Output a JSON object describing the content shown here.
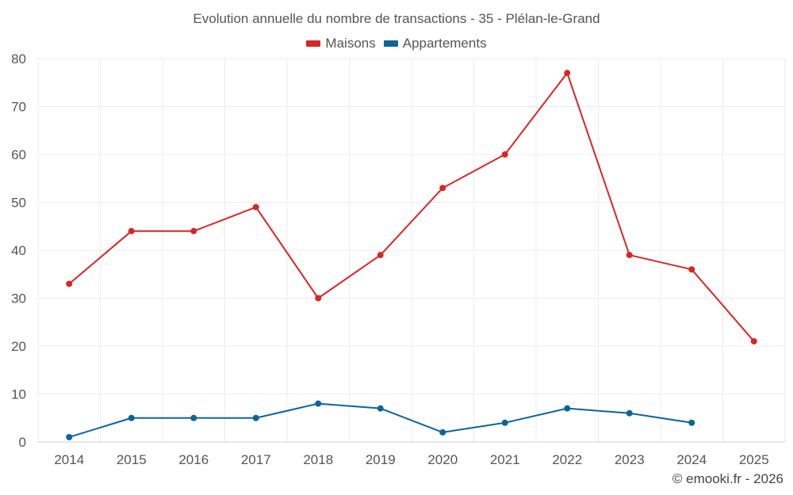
{
  "chart_data": {
    "type": "line",
    "title": "Evolution annuelle du nombre de transactions - 35 - Plélan-le-Grand",
    "xlabel": "",
    "ylabel": "",
    "categories": [
      "2014",
      "2015",
      "2016",
      "2017",
      "2018",
      "2019",
      "2020",
      "2021",
      "2022",
      "2023",
      "2024",
      "2025"
    ],
    "ylim": [
      0,
      80
    ],
    "yticks": [
      0,
      10,
      20,
      30,
      40,
      50,
      60,
      70,
      80
    ],
    "grid": true,
    "legend_position": "top-center",
    "series": [
      {
        "name": "Maisons",
        "color": "#d62728",
        "values": [
          33,
          44,
          44,
          49,
          30,
          39,
          53,
          60,
          77,
          39,
          36,
          21
        ]
      },
      {
        "name": "Appartements",
        "color": "#0f6398",
        "values": [
          1,
          5,
          5,
          5,
          8,
          7,
          2,
          4,
          7,
          6,
          4,
          null
        ]
      }
    ]
  },
  "credit": "© emooki.fr - 2026"
}
